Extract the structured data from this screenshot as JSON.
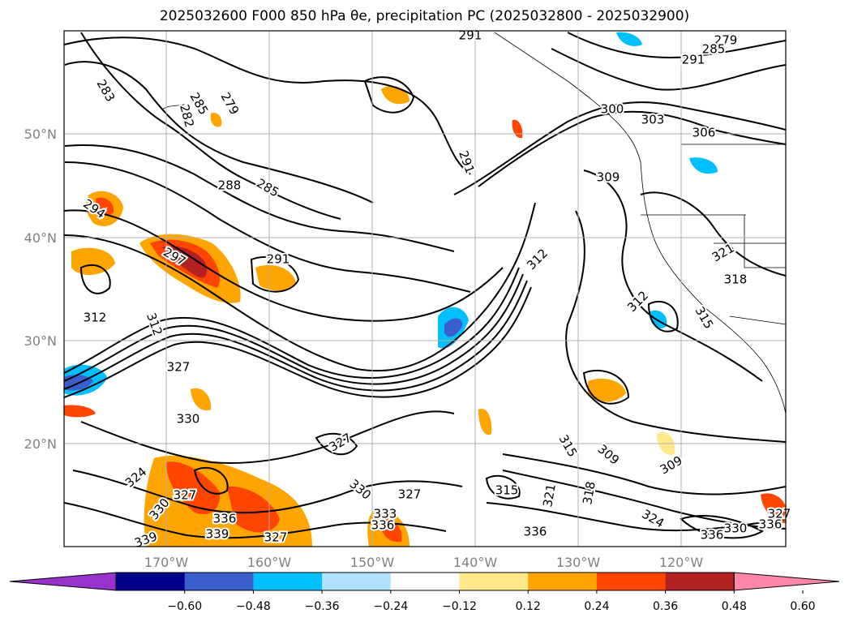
{
  "title": "2025032600 F000 850 hPa θe, precipitation PC (2025032800 - 2025032900)",
  "map": {
    "lat_ticks": [
      "50°N",
      "40°N",
      "30°N",
      "20°N"
    ],
    "lon_ticks": [
      "170°W",
      "160°W",
      "150°W",
      "140°W",
      "130°W",
      "120°W"
    ],
    "contour_labels": [
      "291",
      "279",
      "285",
      "291",
      "283",
      "285",
      "279",
      "282",
      "300",
      "303",
      "306",
      "288",
      "285",
      "291",
      "309",
      "294",
      "297",
      "291",
      "312",
      "312",
      "321",
      "318",
      "312",
      "315",
      "312",
      "327",
      "330",
      "327",
      "315",
      "309",
      "309",
      "324",
      "315",
      "327",
      "321",
      "318",
      "330",
      "336",
      "333",
      "324",
      "330",
      "327",
      "336",
      "339",
      "339",
      "327",
      "336",
      "336",
      "336",
      "330",
      "327"
    ]
  },
  "colorbar": {
    "ticks": [
      "−0.60",
      "−0.48",
      "−0.36",
      "−0.24",
      "−0.12",
      "0.12",
      "0.24",
      "0.36",
      "0.48",
      "0.60"
    ],
    "colors": [
      "#9932cc",
      "#00008b",
      "#3a5fcd",
      "#00bfff",
      "#b0e2ff",
      "#ffffff",
      "#ffe98a",
      "#ffa500",
      "#ff4500",
      "#b22222",
      "#ff88aa"
    ]
  }
}
